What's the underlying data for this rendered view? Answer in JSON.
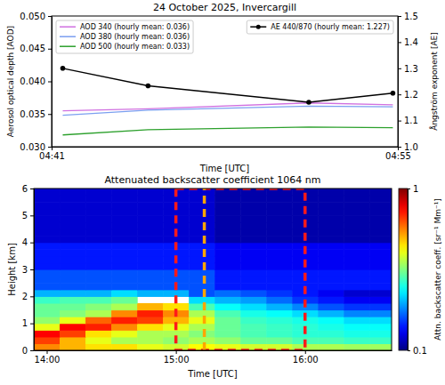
{
  "chart_data": [
    {
      "type": "line",
      "title": "24 October 2025, Invercargill",
      "x_label": "Time [UTC]",
      "y_label": "Aerosol optical depth [AOD]",
      "y2_label": "Ångström exponent [AE]",
      "x": [
        41.45,
        44.9,
        51.4,
        54.8
      ],
      "xlim": [
        41,
        55
      ],
      "xticks": [
        {
          "value": 41,
          "label": "04:41"
        },
        {
          "value": 55,
          "label": "04:55"
        }
      ],
      "ylim": [
        0.03,
        0.05
      ],
      "yticks": [
        {
          "value": 0.03,
          "label": "0.030"
        },
        0.035,
        {
          "value": 0.04,
          "label": "0.040"
        },
        0.045,
        {
          "value": 0.05,
          "label": "0.050"
        }
      ],
      "y2lim": [
        1.0,
        1.5
      ],
      "y2ticks": [
        {
          "value": 1.0,
          "label": "1.0"
        },
        1.1,
        1.2,
        1.3,
        1.4,
        1.5
      ],
      "legend": "upper left",
      "series": [
        {
          "name": "AOD 340 (hourly mean: 0.036)",
          "color": "#d070e0",
          "values": [
            0.0355,
            0.0358,
            0.0367,
            0.0364
          ]
        },
        {
          "name": "AOD 380 (hourly mean: 0.036)",
          "color": "#7b9ff0",
          "values": [
            0.0348,
            0.0356,
            0.0362,
            0.0361
          ]
        },
        {
          "name": "AOD 500 (hourly mean: 0.033)",
          "color": "#2ca02c",
          "values": [
            0.0318,
            0.0326,
            0.033,
            0.0329
          ]
        },
        {
          "name": "AE 440/870 (hourly mean: 1.227)",
          "color": "#000000",
          "axis": "y2",
          "marker": "circle",
          "values": [
            1.3,
            1.233,
            1.17,
            1.205
          ]
        }
      ]
    },
    {
      "type": "heatmap",
      "title": "Attenuated backscatter coefficient 1064 nm",
      "x_label": "Time [UTC]",
      "y_label": "Height [km]",
      "xlim": [
        13.9,
        16.67
      ],
      "xticks": [
        {
          "value": 14,
          "label": "14:00"
        },
        {
          "value": 15,
          "label": "15:00"
        },
        {
          "value": 16,
          "label": "16:00"
        }
      ],
      "ylim": [
        0,
        6
      ],
      "yticks": [
        0,
        1,
        2,
        3,
        4,
        5,
        6
      ],
      "x_bins": [
        13.9,
        14.1,
        14.3,
        14.5,
        14.7,
        14.9,
        15.1,
        15.3,
        15.5,
        15.7,
        15.9,
        16.1,
        16.3,
        16.5,
        16.7
      ],
      "y_bins": [
        0,
        0.25,
        0.5,
        0.75,
        1,
        1.25,
        1.5,
        1.75,
        2,
        2.25,
        2.5,
        2.75,
        3,
        3.25,
        3.5,
        3.75,
        4,
        4.25,
        4.5,
        4.75,
        5,
        5.25,
        5.5,
        5.75,
        6
      ],
      "cells": [
        [
          0.55,
          0.5,
          0.45,
          0.45,
          0.4,
          0.38,
          0.42,
          0.4,
          0.38,
          0.38,
          0.35,
          0.35,
          0.34,
          0.34
        ],
        [
          0.65,
          0.5,
          0.4,
          0.35,
          0.35,
          0.33,
          0.35,
          0.33,
          0.3,
          0.3,
          0.28,
          0.28,
          0.27,
          0.27
        ],
        [
          0.75,
          0.65,
          0.45,
          0.4,
          0.35,
          0.35,
          0.32,
          0.3,
          0.28,
          0.27,
          0.26,
          0.26,
          0.25,
          0.25
        ],
        [
          0.4,
          0.75,
          0.7,
          0.55,
          0.45,
          0.4,
          0.35,
          0.3,
          0.28,
          0.27,
          0.26,
          0.25,
          0.24,
          0.24
        ],
        [
          0.33,
          0.4,
          0.6,
          0.7,
          0.65,
          0.5,
          0.4,
          0.3,
          0.27,
          0.26,
          0.25,
          0.24,
          0.22,
          0.22
        ],
        [
          0.3,
          0.32,
          0.35,
          0.55,
          0.7,
          0.55,
          0.35,
          0.28,
          0.25,
          0.24,
          0.22,
          0.2,
          0.18,
          0.18
        ],
        [
          0.3,
          0.3,
          0.32,
          0.35,
          0.5,
          0.45,
          0.28,
          0.24,
          0.22,
          0.2,
          0.18,
          0.16,
          0.15,
          0.15
        ],
        [
          0.27,
          0.28,
          0.28,
          0.3,
          null,
          null,
          0.22,
          0.2,
          0.19,
          0.17,
          0.15,
          0.14,
          0.13,
          0.13
        ],
        [
          0.2,
          0.2,
          0.2,
          0.22,
          0.2,
          0.2,
          0.16,
          0.17,
          0.16,
          0.15,
          0.14,
          0.13,
          0.12,
          0.12
        ],
        [
          0.16,
          0.16,
          0.16,
          0.16,
          0.16,
          0.16,
          0.16,
          0.14,
          0.14,
          0.14,
          0.14,
          0.14,
          0.14,
          0.14
        ],
        [
          0.16,
          0.16,
          0.16,
          0.16,
          0.16,
          0.16,
          0.16,
          0.14,
          0.14,
          0.14,
          0.14,
          0.14,
          0.14,
          0.14
        ],
        [
          0.16,
          0.16,
          0.16,
          0.16,
          0.16,
          0.16,
          0.16,
          0.14,
          0.14,
          0.14,
          0.14,
          0.14,
          0.14,
          0.14
        ],
        [
          0.14,
          0.14,
          0.14,
          0.14,
          0.14,
          0.14,
          0.14,
          0.13,
          0.13,
          0.13,
          0.13,
          0.13,
          0.13,
          0.13
        ],
        [
          0.14,
          0.14,
          0.14,
          0.14,
          0.14,
          0.14,
          0.14,
          0.13,
          0.13,
          0.13,
          0.13,
          0.13,
          0.13,
          0.13
        ],
        [
          0.14,
          0.14,
          0.14,
          0.14,
          0.14,
          0.14,
          0.14,
          0.13,
          0.13,
          0.13,
          0.13,
          0.13,
          0.13,
          0.13
        ],
        [
          0.14,
          0.14,
          0.14,
          0.14,
          0.14,
          0.14,
          0.14,
          0.13,
          0.13,
          0.13,
          0.13,
          0.13,
          0.13,
          0.13
        ],
        [
          0.12,
          0.12,
          0.12,
          0.12,
          0.12,
          0.12,
          0.12,
          0.11,
          0.11,
          0.11,
          0.11,
          0.11,
          0.11,
          0.11
        ],
        [
          0.12,
          0.12,
          0.12,
          0.12,
          0.12,
          0.12,
          0.12,
          0.11,
          0.11,
          0.11,
          0.11,
          0.11,
          0.11,
          0.11
        ],
        [
          0.12,
          0.12,
          0.12,
          0.12,
          0.12,
          0.12,
          0.12,
          0.11,
          0.11,
          0.11,
          0.11,
          0.11,
          0.11,
          0.11
        ],
        [
          0.12,
          0.12,
          0.12,
          0.12,
          0.12,
          0.12,
          0.12,
          0.11,
          0.11,
          0.11,
          0.11,
          0.11,
          0.11,
          0.11
        ],
        [
          0.12,
          0.12,
          0.12,
          0.12,
          0.12,
          0.12,
          0.12,
          0.11,
          0.11,
          0.11,
          0.11,
          0.11,
          0.11,
          0.11
        ],
        [
          0.12,
          0.12,
          0.12,
          0.12,
          0.12,
          0.12,
          0.12,
          0.11,
          0.11,
          0.11,
          0.11,
          0.11,
          0.11,
          0.11
        ],
        [
          0.12,
          0.12,
          0.12,
          0.12,
          0.12,
          0.12,
          0.12,
          0.11,
          0.11,
          0.11,
          0.11,
          0.11,
          0.11,
          0.11
        ],
        [
          0.12,
          0.12,
          0.12,
          0.12,
          0.12,
          0.12,
          0.12,
          0.11,
          0.11,
          0.11,
          0.11,
          0.11,
          0.11,
          0.11
        ]
      ],
      "colorbar": {
        "label": "Attn. backscatter coeff. [sr⁻¹ Mm⁻¹]",
        "range": [
          0.1,
          1
        ],
        "ticks": [
          0.1,
          1
        ],
        "log": true
      },
      "shapes": [
        {
          "type": "rect",
          "x": [
            15,
            16
          ],
          "y": [
            0,
            6
          ],
          "color": "#ff1a1a"
        },
        {
          "type": "vline",
          "x": 15.22,
          "color": "#ffa500"
        }
      ]
    }
  ]
}
